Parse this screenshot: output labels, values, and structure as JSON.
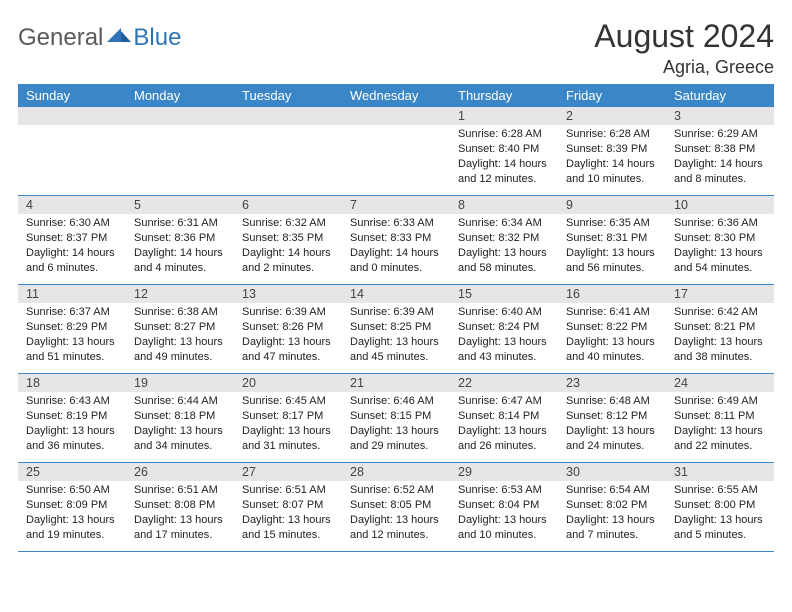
{
  "logo": {
    "text1": "General",
    "text2": "Blue"
  },
  "header": {
    "title": "August 2024",
    "location": "Agria, Greece"
  },
  "colors": {
    "header_blue": "#3b86c6",
    "band_gray": "#e6e6e6",
    "logo_gray": "#5a5a5a",
    "logo_blue": "#2f74b5"
  },
  "dow": [
    "Sunday",
    "Monday",
    "Tuesday",
    "Wednesday",
    "Thursday",
    "Friday",
    "Saturday"
  ],
  "weeks": [
    [
      {
        "n": "",
        "sr": "",
        "ss": "",
        "dl": ""
      },
      {
        "n": "",
        "sr": "",
        "ss": "",
        "dl": ""
      },
      {
        "n": "",
        "sr": "",
        "ss": "",
        "dl": ""
      },
      {
        "n": "",
        "sr": "",
        "ss": "",
        "dl": ""
      },
      {
        "n": "1",
        "sr": "Sunrise: 6:28 AM",
        "ss": "Sunset: 8:40 PM",
        "dl": "Daylight: 14 hours and 12 minutes."
      },
      {
        "n": "2",
        "sr": "Sunrise: 6:28 AM",
        "ss": "Sunset: 8:39 PM",
        "dl": "Daylight: 14 hours and 10 minutes."
      },
      {
        "n": "3",
        "sr": "Sunrise: 6:29 AM",
        "ss": "Sunset: 8:38 PM",
        "dl": "Daylight: 14 hours and 8 minutes."
      }
    ],
    [
      {
        "n": "4",
        "sr": "Sunrise: 6:30 AM",
        "ss": "Sunset: 8:37 PM",
        "dl": "Daylight: 14 hours and 6 minutes."
      },
      {
        "n": "5",
        "sr": "Sunrise: 6:31 AM",
        "ss": "Sunset: 8:36 PM",
        "dl": "Daylight: 14 hours and 4 minutes."
      },
      {
        "n": "6",
        "sr": "Sunrise: 6:32 AM",
        "ss": "Sunset: 8:35 PM",
        "dl": "Daylight: 14 hours and 2 minutes."
      },
      {
        "n": "7",
        "sr": "Sunrise: 6:33 AM",
        "ss": "Sunset: 8:33 PM",
        "dl": "Daylight: 14 hours and 0 minutes."
      },
      {
        "n": "8",
        "sr": "Sunrise: 6:34 AM",
        "ss": "Sunset: 8:32 PM",
        "dl": "Daylight: 13 hours and 58 minutes."
      },
      {
        "n": "9",
        "sr": "Sunrise: 6:35 AM",
        "ss": "Sunset: 8:31 PM",
        "dl": "Daylight: 13 hours and 56 minutes."
      },
      {
        "n": "10",
        "sr": "Sunrise: 6:36 AM",
        "ss": "Sunset: 8:30 PM",
        "dl": "Daylight: 13 hours and 54 minutes."
      }
    ],
    [
      {
        "n": "11",
        "sr": "Sunrise: 6:37 AM",
        "ss": "Sunset: 8:29 PM",
        "dl": "Daylight: 13 hours and 51 minutes."
      },
      {
        "n": "12",
        "sr": "Sunrise: 6:38 AM",
        "ss": "Sunset: 8:27 PM",
        "dl": "Daylight: 13 hours and 49 minutes."
      },
      {
        "n": "13",
        "sr": "Sunrise: 6:39 AM",
        "ss": "Sunset: 8:26 PM",
        "dl": "Daylight: 13 hours and 47 minutes."
      },
      {
        "n": "14",
        "sr": "Sunrise: 6:39 AM",
        "ss": "Sunset: 8:25 PM",
        "dl": "Daylight: 13 hours and 45 minutes."
      },
      {
        "n": "15",
        "sr": "Sunrise: 6:40 AM",
        "ss": "Sunset: 8:24 PM",
        "dl": "Daylight: 13 hours and 43 minutes."
      },
      {
        "n": "16",
        "sr": "Sunrise: 6:41 AM",
        "ss": "Sunset: 8:22 PM",
        "dl": "Daylight: 13 hours and 40 minutes."
      },
      {
        "n": "17",
        "sr": "Sunrise: 6:42 AM",
        "ss": "Sunset: 8:21 PM",
        "dl": "Daylight: 13 hours and 38 minutes."
      }
    ],
    [
      {
        "n": "18",
        "sr": "Sunrise: 6:43 AM",
        "ss": "Sunset: 8:19 PM",
        "dl": "Daylight: 13 hours and 36 minutes."
      },
      {
        "n": "19",
        "sr": "Sunrise: 6:44 AM",
        "ss": "Sunset: 8:18 PM",
        "dl": "Daylight: 13 hours and 34 minutes."
      },
      {
        "n": "20",
        "sr": "Sunrise: 6:45 AM",
        "ss": "Sunset: 8:17 PM",
        "dl": "Daylight: 13 hours and 31 minutes."
      },
      {
        "n": "21",
        "sr": "Sunrise: 6:46 AM",
        "ss": "Sunset: 8:15 PM",
        "dl": "Daylight: 13 hours and 29 minutes."
      },
      {
        "n": "22",
        "sr": "Sunrise: 6:47 AM",
        "ss": "Sunset: 8:14 PM",
        "dl": "Daylight: 13 hours and 26 minutes."
      },
      {
        "n": "23",
        "sr": "Sunrise: 6:48 AM",
        "ss": "Sunset: 8:12 PM",
        "dl": "Daylight: 13 hours and 24 minutes."
      },
      {
        "n": "24",
        "sr": "Sunrise: 6:49 AM",
        "ss": "Sunset: 8:11 PM",
        "dl": "Daylight: 13 hours and 22 minutes."
      }
    ],
    [
      {
        "n": "25",
        "sr": "Sunrise: 6:50 AM",
        "ss": "Sunset: 8:09 PM",
        "dl": "Daylight: 13 hours and 19 minutes."
      },
      {
        "n": "26",
        "sr": "Sunrise: 6:51 AM",
        "ss": "Sunset: 8:08 PM",
        "dl": "Daylight: 13 hours and 17 minutes."
      },
      {
        "n": "27",
        "sr": "Sunrise: 6:51 AM",
        "ss": "Sunset: 8:07 PM",
        "dl": "Daylight: 13 hours and 15 minutes."
      },
      {
        "n": "28",
        "sr": "Sunrise: 6:52 AM",
        "ss": "Sunset: 8:05 PM",
        "dl": "Daylight: 13 hours and 12 minutes."
      },
      {
        "n": "29",
        "sr": "Sunrise: 6:53 AM",
        "ss": "Sunset: 8:04 PM",
        "dl": "Daylight: 13 hours and 10 minutes."
      },
      {
        "n": "30",
        "sr": "Sunrise: 6:54 AM",
        "ss": "Sunset: 8:02 PM",
        "dl": "Daylight: 13 hours and 7 minutes."
      },
      {
        "n": "31",
        "sr": "Sunrise: 6:55 AM",
        "ss": "Sunset: 8:00 PM",
        "dl": "Daylight: 13 hours and 5 minutes."
      }
    ]
  ]
}
